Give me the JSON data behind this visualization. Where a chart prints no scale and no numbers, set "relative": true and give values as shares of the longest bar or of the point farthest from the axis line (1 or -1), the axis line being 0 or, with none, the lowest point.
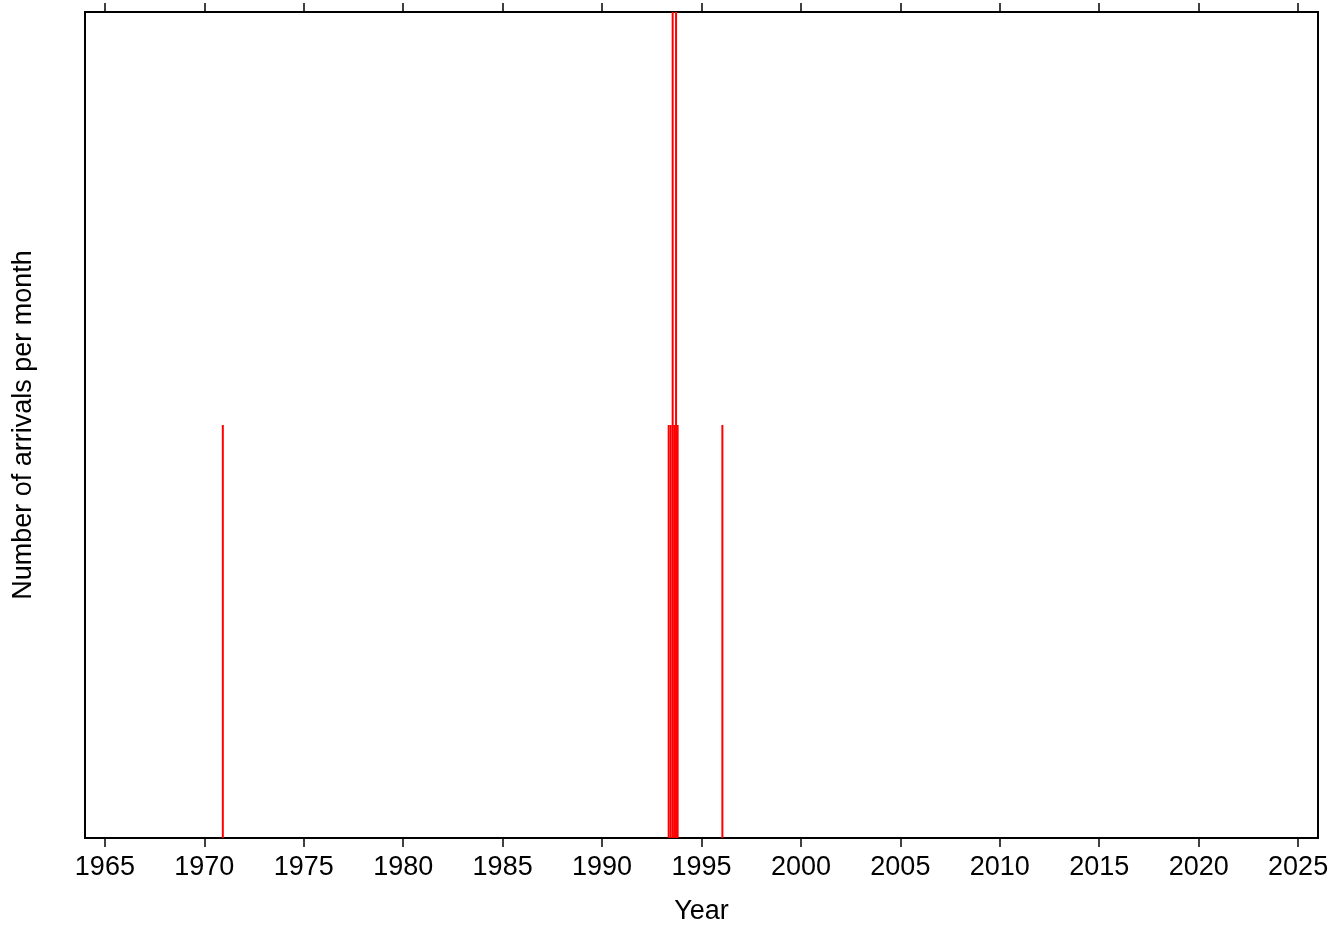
{
  "chart_data": {
    "type": "bar",
    "relative": true,
    "xlabel": "Year",
    "ylabel": "Number of arrivals per month",
    "x": [
      1970.93,
      1993.35,
      1993.45,
      1993.55,
      1993.63,
      1993.72,
      1993.8,
      1996.05
    ],
    "series": [
      {
        "color": "#ff0000",
        "values": [
          0.5,
          0.5,
          0.5,
          1,
          0.5,
          1,
          0.5,
          0.5
        ]
      }
    ],
    "xlim": [
      1964,
      2026
    ],
    "xticks": [
      1965,
      1970,
      1975,
      1980,
      1985,
      1990,
      1995,
      2000,
      2005,
      2010,
      2015,
      2020,
      2025
    ],
    "grid": false
  }
}
